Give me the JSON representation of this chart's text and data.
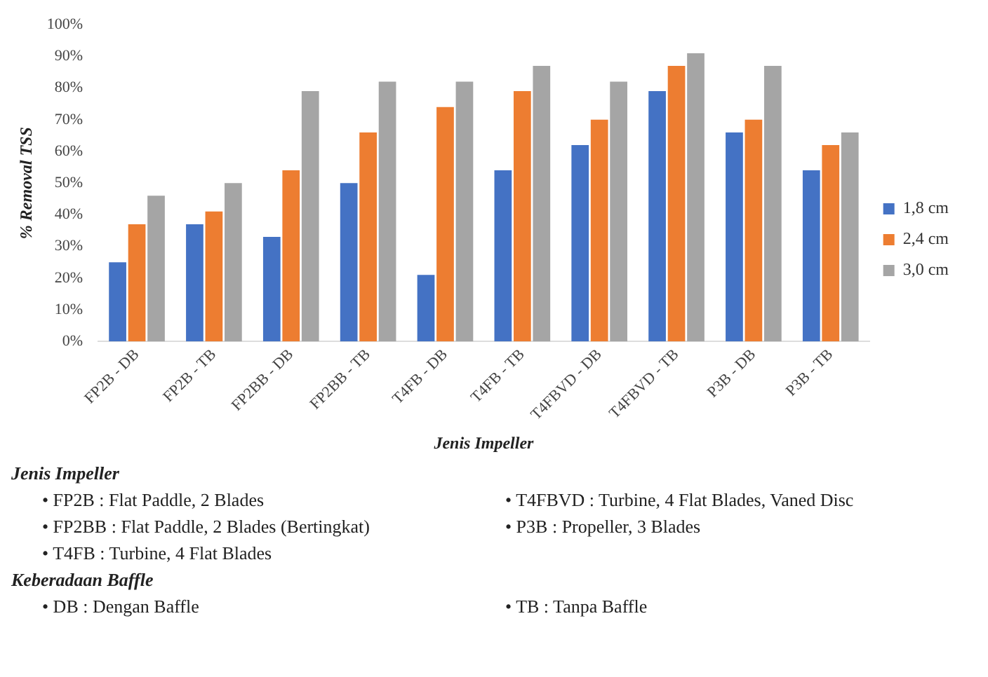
{
  "chart_data": {
    "type": "bar",
    "categories": [
      "FP2B - DB",
      "FP2B - TB",
      "FP2BB - DB",
      "FP2BB - TB",
      "T4FB - DB",
      "T4FB - TB",
      "T4FBVD - DB",
      "T4FBVD - TB",
      "P3B - DB",
      "P3B - TB"
    ],
    "series": [
      {
        "name": "1,8 cm",
        "color": "#4472c4",
        "values": [
          25,
          37,
          33,
          50,
          21,
          54,
          62,
          79,
          66,
          54
        ]
      },
      {
        "name": "2,4 cm",
        "color": "#ed7d31",
        "values": [
          37,
          41,
          54,
          66,
          74,
          79,
          70,
          87,
          70,
          62
        ]
      },
      {
        "name": "3,0 cm",
        "color": "#a5a5a5",
        "values": [
          46,
          50,
          79,
          82,
          82,
          87,
          82,
          91,
          87,
          66
        ]
      }
    ],
    "ylim": [
      0,
      100
    ],
    "yticks": [
      {
        "value": 0,
        "label": "0%"
      },
      {
        "value": 10,
        "label": "10%"
      },
      {
        "value": 20,
        "label": "20%"
      },
      {
        "value": 30,
        "label": "30%"
      },
      {
        "value": 40,
        "label": "40%"
      },
      {
        "value": 50,
        "label": "50%"
      },
      {
        "value": 60,
        "label": "60%"
      },
      {
        "value": 70,
        "label": "70%"
      },
      {
        "value": 80,
        "label": "80%"
      },
      {
        "value": 90,
        "label": "90%"
      },
      {
        "value": 100,
        "label": "100%"
      }
    ],
    "xlabel": "Jenis Impeller",
    "ylabel": "% Removal TSS",
    "legend": "right",
    "grid": false,
    "annotations": [
      "Jenis Impeller",
      "• FP2B : Flat Paddle, 2 Blades",
      "• T4FBVD : Turbine, 4 Flat Blades, Vaned Disc",
      "• FP2BB : Flat Paddle, 2 Blades (Bertingkat)",
      "• P3B : Propeller, 3 Blades",
      "• T4FB : Turbine, 4 Flat Blades",
      "Keberadaan Baffle",
      "• DB : Dengan Baffle",
      "• TB : Tanpa Baffle"
    ]
  }
}
